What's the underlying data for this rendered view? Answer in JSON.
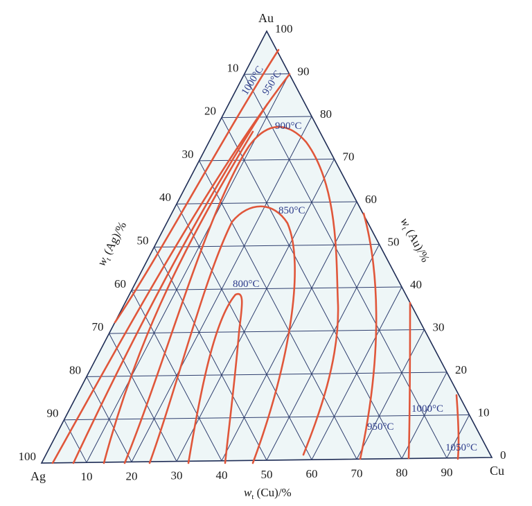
{
  "vertices": {
    "top": "Au",
    "left": "Ag",
    "right": "Cu"
  },
  "axis_titles": {
    "left": {
      "w": "w",
      "sub": "t",
      "rest": " (Ag)/%"
    },
    "right": {
      "w": "w",
      "sub": "t",
      "rest": " (Au)/%"
    },
    "bottom": {
      "w": "w",
      "sub": "t",
      "rest": " (Cu)/%"
    }
  },
  "ticks": {
    "left": [
      "10",
      "20",
      "30",
      "40",
      "50",
      "60",
      "70",
      "80",
      "90",
      "100"
    ],
    "right": [
      "100",
      "90",
      "80",
      "70",
      "60",
      "50",
      "40",
      "30",
      "20",
      "10",
      "0"
    ],
    "bottom": [
      "10",
      "20",
      "30",
      "40",
      "50",
      "60",
      "70",
      "80",
      "90"
    ]
  },
  "isotherm_labels": {
    "t1000_left": "1000°C",
    "t950_left": "950°C",
    "t900": "900°C",
    "t850": "850°C",
    "t800": "800°C",
    "t950_right": "950°C",
    "t1000_right": "1000°C",
    "t1050": "1050°C"
  },
  "colors": {
    "isotherm": "#e0563a",
    "grid": "#2e3e6e",
    "label": "#2b3a8a",
    "fill": "#eef6f7"
  }
}
